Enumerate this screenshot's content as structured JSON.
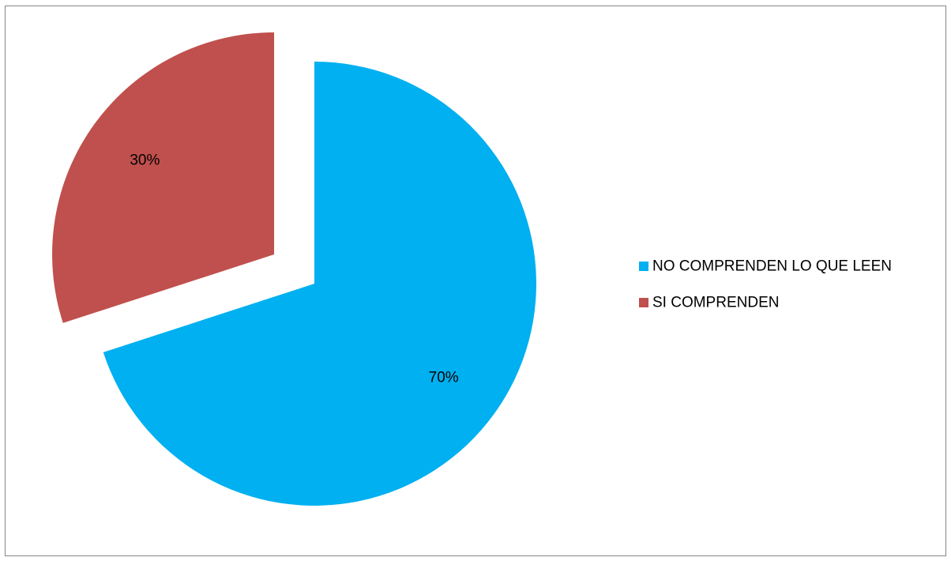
{
  "chart_data": {
    "type": "pie",
    "slices": [
      {
        "label": "NO COMPRENDEN LO QUE LEEN",
        "value": 70,
        "display": "70%",
        "color": "#00B0F0",
        "exploded": false
      },
      {
        "label": "SI COMPRENDEN",
        "value": 30,
        "display": "30%",
        "color": "#C0504D",
        "exploded": true
      }
    ],
    "legend_position": "right",
    "start_angle_deg": 90,
    "direction": "clockwise"
  }
}
